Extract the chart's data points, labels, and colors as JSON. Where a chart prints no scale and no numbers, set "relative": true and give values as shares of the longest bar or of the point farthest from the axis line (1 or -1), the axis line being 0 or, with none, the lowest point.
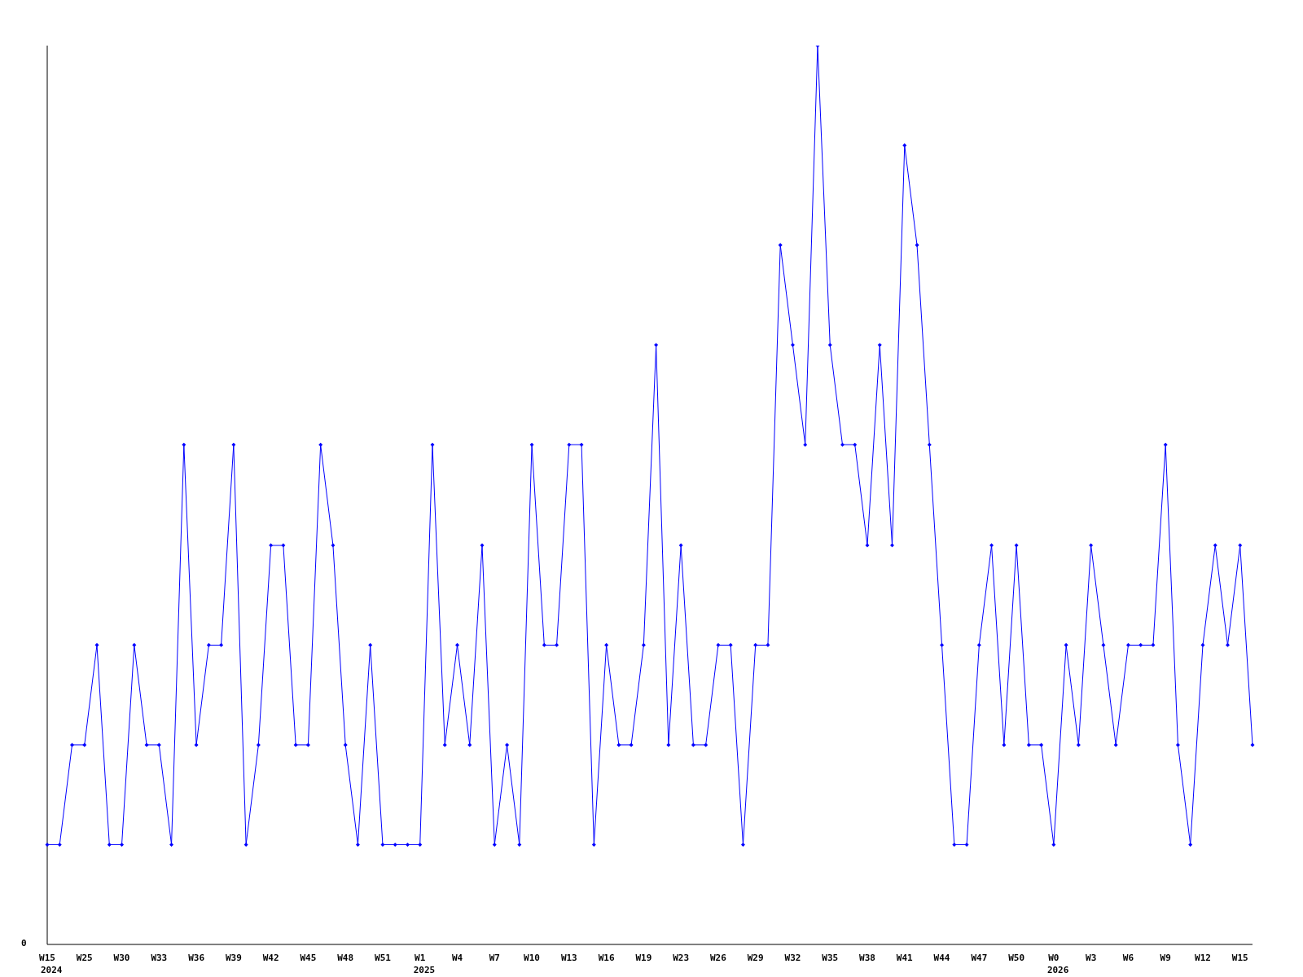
{
  "chart_data": {
    "type": "line",
    "relative": true,
    "marker": "diamond",
    "line_style": "solid",
    "grid": false,
    "legend": false,
    "annotations": [
      "0"
    ],
    "categories": [
      "W15\n2024",
      null,
      null,
      "W25",
      null,
      null,
      "W30",
      null,
      null,
      "W33",
      null,
      null,
      "W36",
      null,
      null,
      "W39",
      null,
      null,
      "W42",
      null,
      null,
      "W45",
      null,
      null,
      "W48",
      null,
      null,
      "W51",
      null,
      null,
      "W1\n2025",
      null,
      null,
      "W4",
      null,
      null,
      "W7",
      null,
      null,
      "W10",
      null,
      null,
      "W13",
      null,
      null,
      "W16",
      null,
      null,
      "W19",
      null,
      null,
      "W23",
      null,
      null,
      "W26",
      null,
      null,
      "W29",
      null,
      null,
      "W32",
      null,
      null,
      "W35",
      null,
      null,
      "W38",
      null,
      null,
      "W41",
      null,
      null,
      "W44",
      null,
      null,
      "W47",
      null,
      null,
      "W50",
      null,
      null,
      "W0\n2026",
      null,
      null,
      "W3",
      null,
      null,
      "W6",
      null,
      null,
      "W9",
      null,
      null,
      "W12",
      null,
      null,
      "W15",
      null
    ],
    "series": [
      {
        "color": "#0000ff",
        "values": [
          0.111,
          0.111,
          0.222,
          0.222,
          0.333,
          0.111,
          0.111,
          0.333,
          0.222,
          0.222,
          0.111,
          0.556,
          0.222,
          0.333,
          0.333,
          0.556,
          0.111,
          0.222,
          0.444,
          0.444,
          0.222,
          0.222,
          0.556,
          0.444,
          0.222,
          0.111,
          0.333,
          0.111,
          0.111,
          0.111,
          0.111,
          0.556,
          0.222,
          0.333,
          0.222,
          0.444,
          0.111,
          0.222,
          0.111,
          0.556,
          0.333,
          0.333,
          0.556,
          0.556,
          0.111,
          0.333,
          0.222,
          0.222,
          0.333,
          0.667,
          0.222,
          0.444,
          0.222,
          0.222,
          0.333,
          0.333,
          0.111,
          0.333,
          0.333,
          0.778,
          0.667,
          0.556,
          1,
          0.667,
          0.556,
          0.556,
          0.444,
          0.667,
          0.444,
          0.889,
          0.778,
          0.556,
          0.333,
          0.111,
          0.111,
          0.333,
          0.444,
          0.222,
          0.444,
          0.222,
          0.222,
          0.111,
          0.333,
          0.222,
          0.444,
          0.333,
          0.222,
          0.333,
          0.333,
          0.333,
          0.556,
          0.222,
          0.111,
          0.333,
          0.444,
          0.333,
          0.444,
          0.222
        ]
      }
    ]
  }
}
